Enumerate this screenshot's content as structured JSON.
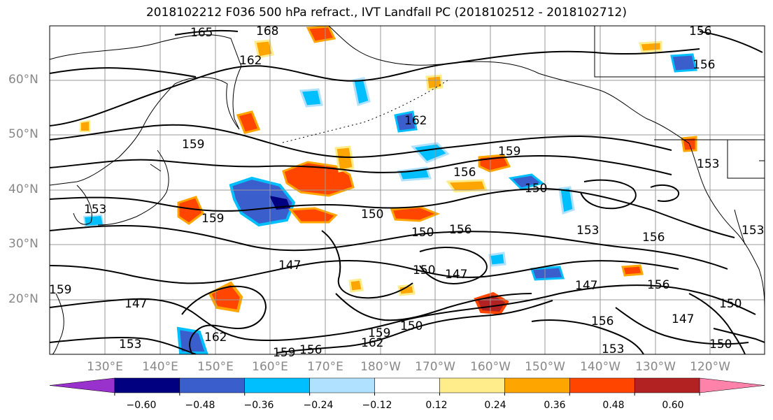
{
  "title": "2018102212 F036 500 hPa refract., IVT Landfall PC (2018102512 - 2018102712)",
  "lat_labels": [
    "60°N",
    "50°N",
    "40°N",
    "30°N",
    "20°N"
  ],
  "lon_labels": [
    "130°E",
    "140°E",
    "150°E",
    "160°E",
    "170°E",
    "180°W",
    "170°W",
    "160°W",
    "150°W",
    "140°W",
    "130°W",
    "120°W"
  ],
  "contour_labels": [
    "165",
    "168",
    "162",
    "162",
    "159",
    "159",
    "156",
    "159",
    "153",
    "159",
    "150",
    "150",
    "150",
    "156",
    "153",
    "147",
    "147",
    "150",
    "147",
    "156",
    "156",
    "147",
    "159",
    "162",
    "150",
    "156",
    "159",
    "162",
    "153",
    "156",
    "150",
    "147",
    "150",
    "153",
    "156",
    "156",
    "153",
    "153"
  ],
  "colorbar": {
    "colors": [
      "#9932cc",
      "#000080",
      "#3a5fcd",
      "#00bfff",
      "#b0e2ff",
      "#ffffff",
      "#ffec8b",
      "#ffa500",
      "#ff4500",
      "#b22222",
      "#ff82ab"
    ],
    "tick_labels": [
      "−0.60",
      "−0.48",
      "−0.36",
      "−0.24",
      "−0.12",
      "0.12",
      "0.24",
      "0.36",
      "0.48",
      "0.60"
    ]
  },
  "colors": {
    "coast": "#000000",
    "contour": "#000000",
    "grid": "#999999"
  }
}
